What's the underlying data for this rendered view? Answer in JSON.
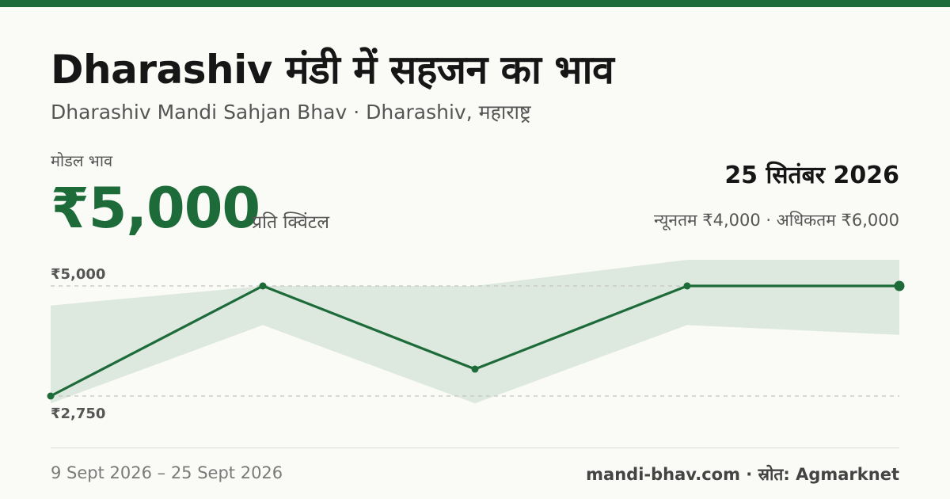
{
  "header": {
    "title": "Dharashiv मंडी में सहजन का भाव",
    "subtitle": "Dharashiv Mandi Sahjan Bhav · Dharashiv, महाराष्ट्र"
  },
  "price": {
    "label": "मोडल भाव",
    "value": "₹5,000",
    "unit": "प्रति क्विंटल"
  },
  "date": "25 सितंबर 2026",
  "minmax_text": "न्यूनतम ₹4,000 · अधिकतम ₹6,000",
  "footer": {
    "range": "9 Sept 2026 – 25 Sept 2026",
    "source": "mandi-bhav.com · स्रोत: Agmarknet"
  },
  "colors": {
    "brand": "#1e6b3a",
    "band": "#dde8df",
    "grid": "#c4c4be"
  },
  "chart_data": {
    "type": "line",
    "points": 5,
    "modal": [
      2750,
      5000,
      3300,
      5000,
      5000
    ],
    "min": [
      2600,
      4200,
      2600,
      4200,
      4000
    ],
    "max": [
      4600,
      5000,
      5000,
      5600,
      6000
    ],
    "reference_lines": [
      {
        "value": 5000,
        "label": "₹5,000"
      },
      {
        "value": 2750,
        "label": "₹2,750"
      }
    ],
    "grid": false,
    "legend": "none"
  }
}
